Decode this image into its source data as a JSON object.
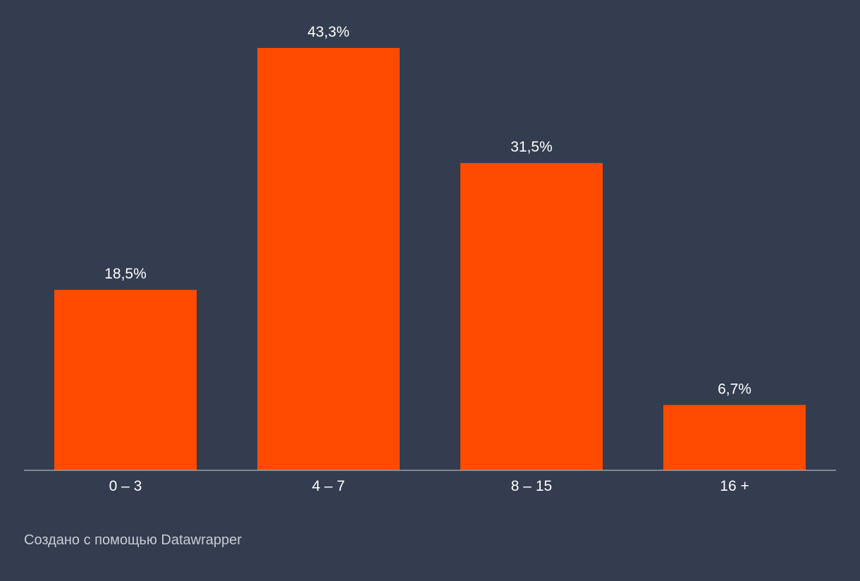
{
  "chart_data": {
    "type": "bar",
    "categories": [
      "0 – 3",
      "4 – 7",
      "8 – 15",
      "16 +"
    ],
    "values": [
      18.5,
      43.3,
      31.5,
      6.7
    ],
    "value_labels": [
      "18,5%",
      "43,3%",
      "31,5%",
      "6,7%"
    ],
    "title": "",
    "xlabel": "",
    "ylabel": "",
    "ylim": [
      0,
      43.3
    ],
    "grid": false,
    "colors": {
      "background": "#333d4f",
      "bar": "#ff4a00",
      "axis": "#9aa0aa",
      "label_text": "#ffffff"
    }
  },
  "footer": {
    "credit": "Создано с помощью Datawrapper"
  }
}
